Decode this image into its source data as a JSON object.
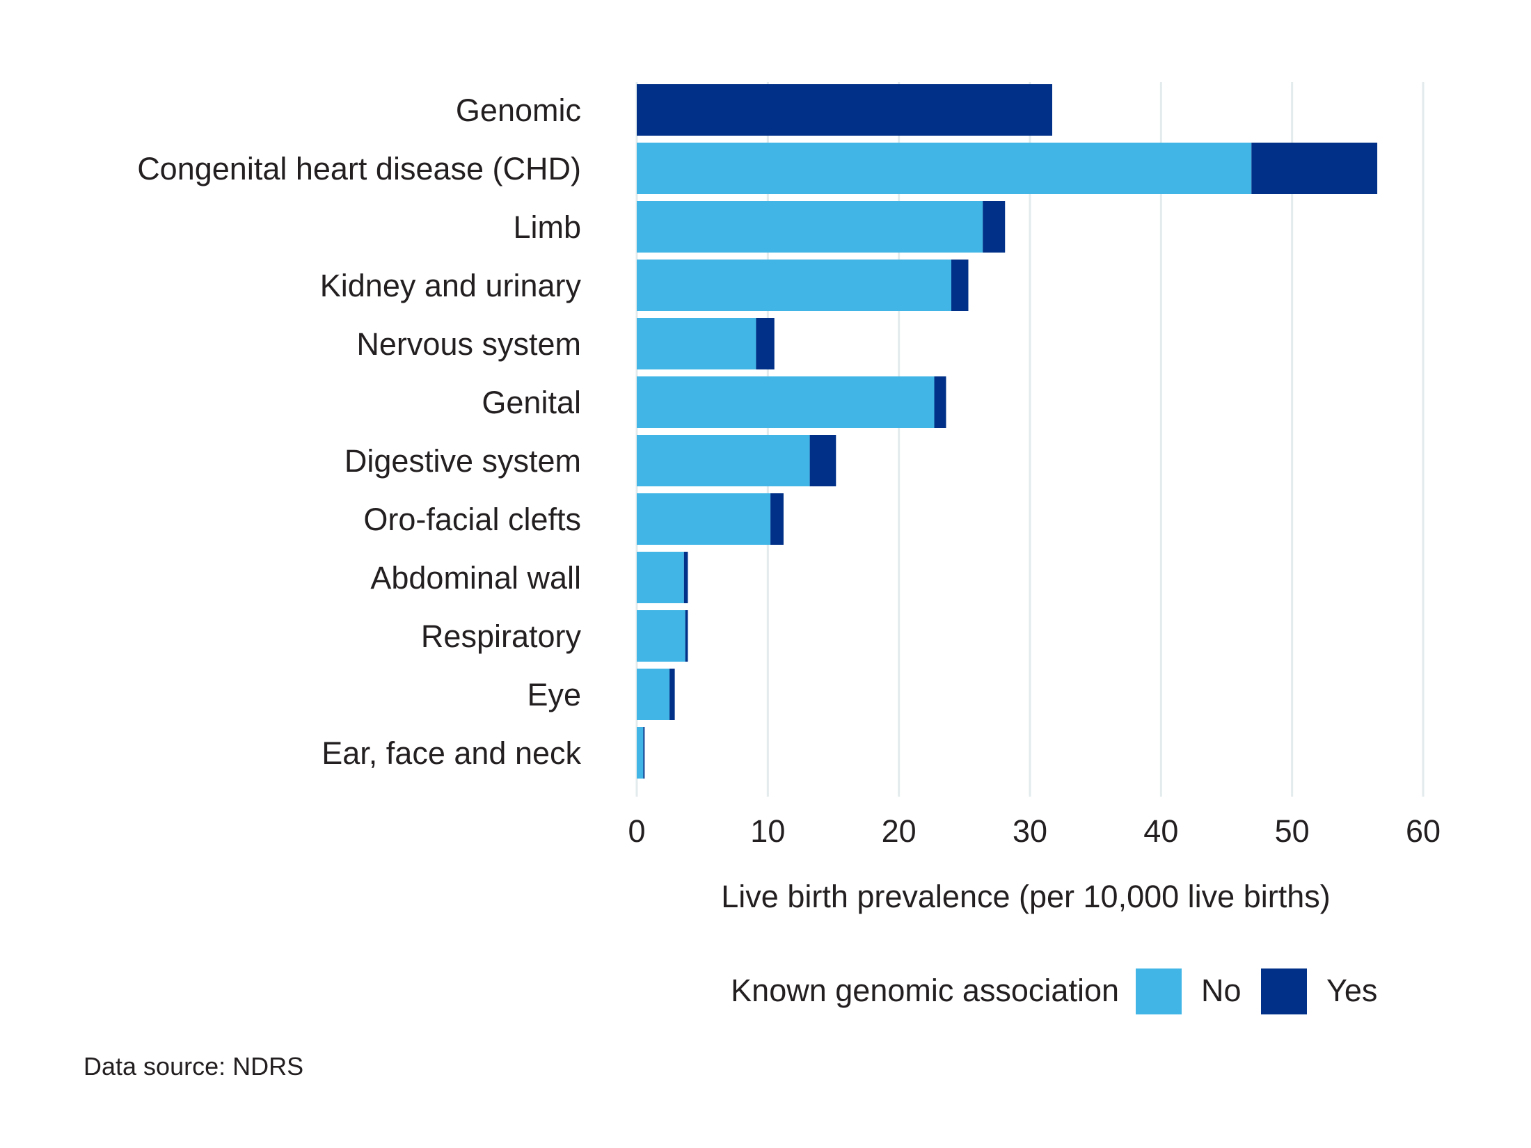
{
  "chart_data": {
    "type": "bar",
    "orientation": "horizontal",
    "stacked": true,
    "categories": [
      "Genomic",
      "Congenital heart disease (CHD)",
      "Limb",
      "Kidney and urinary",
      "Nervous system",
      "Genital",
      "Digestive system",
      "Oro-facial clefts",
      "Abdominal wall",
      "Respiratory",
      "Eye",
      "Ear, face and neck"
    ],
    "series": [
      {
        "name": "No",
        "color": "#41b6e6",
        "values": [
          0,
          46.9,
          26.4,
          24.0,
          9.1,
          22.7,
          13.2,
          10.2,
          3.6,
          3.7,
          2.5,
          0.5
        ]
      },
      {
        "name": "Yes",
        "color": "#003087",
        "values": [
          31.7,
          9.6,
          1.7,
          1.3,
          1.4,
          0.9,
          2.0,
          1.0,
          0.3,
          0.2,
          0.4,
          0.1
        ]
      }
    ],
    "xlabel": "Live birth prevalence (per 10,000 live births)",
    "xlim": [
      0,
      60
    ],
    "xticks": [
      0,
      10,
      20,
      30,
      40,
      50,
      60
    ],
    "grid": "vertical",
    "legend": {
      "title": "Known genomic association",
      "position": "bottom",
      "labels": [
        "No",
        "Yes"
      ]
    },
    "caption": "Data source: NDRS"
  }
}
